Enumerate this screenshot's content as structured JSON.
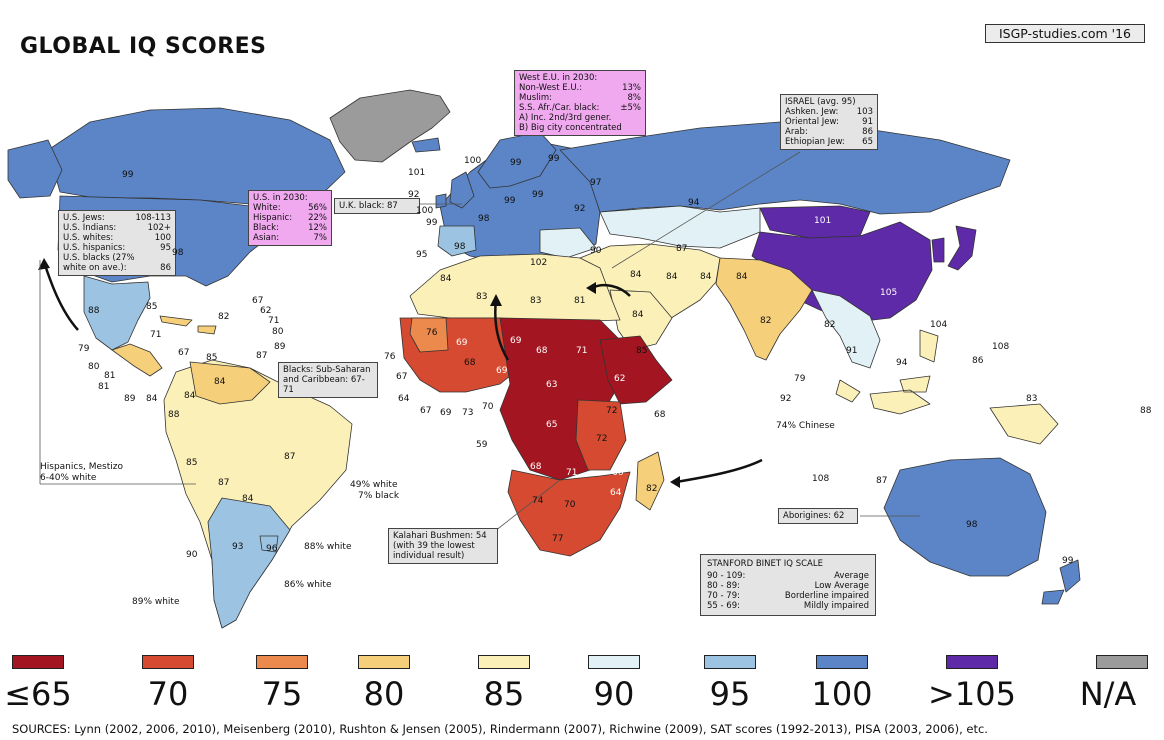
{
  "title": "GLOBAL IQ SCORES",
  "credit": "ISGP-studies.com '16",
  "colors": {
    "le65": "#a31621",
    "70": "#d54a30",
    "75": "#ec8a4e",
    "80": "#f6cf7a",
    "85": "#fbf1b8",
    "90": "#e2f1f6",
    "95": "#9cc4e2",
    "100": "#5b85c6",
    "gt105": "#5e2aa8",
    "na": "#9b9b9b",
    "ocean": "#ffffff",
    "border": "#333333"
  },
  "legend": [
    {
      "label": "≤65",
      "color": "#a31621"
    },
    {
      "label": "70",
      "color": "#d54a30"
    },
    {
      "label": "75",
      "color": "#ec8a4e"
    },
    {
      "label": "80",
      "color": "#f6cf7a"
    },
    {
      "label": "85",
      "color": "#fbf1b8"
    },
    {
      "label": "90",
      "color": "#e2f1f6"
    },
    {
      "label": "95",
      "color": "#9cc4e2"
    },
    {
      "label": "100",
      "color": "#5b85c6"
    },
    {
      "label": ">105",
      "color": "#5e2aa8"
    },
    {
      "label": "N/A",
      "color": "#9b9b9b"
    }
  ],
  "sources": "SOURCES: Lynn (2002, 2006, 2010), Meisenberg (2010), Rushton & Jensen (2005), Rindermann (2007), Richwine (2009), SAT scores (1992-2013), PISA (2003, 2006), etc.",
  "boxes": {
    "us_groups": {
      "rows": [
        [
          "U.S. Jews:",
          "108-113"
        ],
        [
          "U.S. Indians:",
          "102+"
        ],
        [
          "U.S. whites:",
          "100"
        ],
        [
          "U.S. hispanics:",
          "95"
        ],
        [
          "U.S. blacks (27%",
          ""
        ],
        [
          "white on ave.):",
          "86"
        ]
      ]
    },
    "us_2030": {
      "head": "U.S. in 2030:",
      "rows": [
        [
          "White:",
          "56%"
        ],
        [
          "Hispanic:",
          "22%"
        ],
        [
          "Black:",
          "12%"
        ],
        [
          "Asian:",
          "7%"
        ]
      ]
    },
    "uk_black": "U.K. black: 87",
    "west_eu": {
      "rows": [
        [
          "West E.U. in 2030:",
          ""
        ],
        [
          "Non-West E.U.:",
          "13%"
        ],
        [
          "Muslim:",
          "8%"
        ],
        [
          "S.S. Afr./Car. black:",
          "±5%"
        ],
        [
          "A) Inc. 2nd/3rd gener.",
          ""
        ],
        [
          "B) Big city concentrated",
          ""
        ]
      ]
    },
    "israel": {
      "rows": [
        [
          "ISRAEL (avg. 95)",
          ""
        ],
        [
          "Ashken. Jew:",
          "103"
        ],
        [
          "Oriental Jew:",
          "91"
        ],
        [
          "Arab:",
          "86"
        ],
        [
          "Ethiopian Jew:",
          "65"
        ]
      ]
    },
    "blacks": {
      "lines": [
        "Blacks: Sub-Saharan",
        "and Caribbean: 67-71"
      ]
    },
    "kalahari": {
      "lines": [
        "Kalahari Bushmen: 54",
        "(with 39 the lowest",
        "individual result)"
      ]
    },
    "aborigines": "Aborigines: 62",
    "stanford": {
      "head": "STANFORD BINET IQ SCALE",
      "rows": [
        [
          "90 - 109:",
          "Average"
        ],
        [
          "80 -  89:",
          "Low Average"
        ],
        [
          "70 -  79:",
          "Borderline impaired"
        ],
        [
          "55 -  69:",
          "Mildly impaired"
        ]
      ]
    }
  },
  "notes": {
    "hispanics": [
      "Hispanics, Mestizo",
      "6-40% white"
    ],
    "brazil_white": "49% white",
    "brazil_black": "7% black",
    "uruguay_white": "88% white",
    "argentina_white": "86% white",
    "chile_white": "89% white",
    "chinese": "74% Chinese"
  },
  "map_labels": [
    {
      "t": "99",
      "k": "can"
    },
    {
      "t": "98",
      "k": "usa"
    },
    {
      "t": "88",
      "k": "mex"
    },
    {
      "t": "79",
      "k": "gtm"
    },
    {
      "t": "80",
      "k": "hnd"
    },
    {
      "t": "81",
      "k": "nic"
    },
    {
      "t": "81",
      "k": "cri"
    },
    {
      "t": "89",
      "k": "pan"
    },
    {
      "t": "84",
      "k": "col2"
    },
    {
      "t": "85",
      "k": "cub"
    },
    {
      "t": "71",
      "k": "hti"
    },
    {
      "t": "82",
      "k": "dom"
    },
    {
      "t": "67",
      "k": "jam"
    },
    {
      "t": "67",
      "k": "lca"
    },
    {
      "t": "62",
      "k": "vct"
    },
    {
      "t": "71",
      "k": "grd"
    },
    {
      "t": "80",
      "k": "tto"
    },
    {
      "t": "89",
      "k": "brb"
    },
    {
      "t": "87",
      "k": "ven2"
    },
    {
      "t": "85",
      "k": "pri"
    },
    {
      "t": "84",
      "k": "ven"
    },
    {
      "t": "88",
      "k": "ecu"
    },
    {
      "t": "84",
      "k": "col"
    },
    {
      "t": "85",
      "k": "per"
    },
    {
      "t": "87",
      "k": "bra"
    },
    {
      "t": "87",
      "k": "bol"
    },
    {
      "t": "84",
      "k": "pry"
    },
    {
      "t": "93",
      "k": "arg"
    },
    {
      "t": "96",
      "k": "ury"
    },
    {
      "t": "90",
      "k": "chl"
    },
    {
      "t": "101",
      "k": "isl"
    },
    {
      "t": "100",
      "k": "nor"
    },
    {
      "t": "99",
      "k": "swe"
    },
    {
      "t": "99",
      "k": "fin"
    },
    {
      "t": "97",
      "k": "rus"
    },
    {
      "t": "92",
      "k": "irl"
    },
    {
      "t": "100",
      "k": "gbr"
    },
    {
      "t": "99",
      "k": "fra2"
    },
    {
      "t": "98",
      "k": "fra"
    },
    {
      "t": "95",
      "k": "prt"
    },
    {
      "t": "98",
      "k": "esp"
    },
    {
      "t": "99",
      "k": "deu"
    },
    {
      "t": "99",
      "k": "pol"
    },
    {
      "t": "92",
      "k": "ukr"
    },
    {
      "t": "90",
      "k": "tur"
    },
    {
      "t": "94",
      "k": "kaz"
    },
    {
      "t": "87",
      "k": "uzb"
    },
    {
      "t": "101",
      "k": "mng"
    },
    {
      "t": "105",
      "k": "chn"
    },
    {
      "t": "105",
      "k": "kor"
    },
    {
      "t": "105",
      "k": "jpn"
    },
    {
      "t": "104",
      "k": "twn"
    },
    {
      "t": "108",
      "k": "hkg"
    },
    {
      "t": "84",
      "k": "mar"
    },
    {
      "t": "83",
      "k": "dza"
    },
    {
      "t": "83",
      "k": "lby"
    },
    {
      "t": "81",
      "k": "egy"
    },
    {
      "t": "102",
      "k": "ita"
    },
    {
      "t": "84",
      "k": "irq"
    },
    {
      "t": "84",
      "k": "irn"
    },
    {
      "t": "84",
      "k": "afg"
    },
    {
      "t": "84",
      "k": "pak"
    },
    {
      "t": "82",
      "k": "ind"
    },
    {
      "t": "82",
      "k": "mmr"
    },
    {
      "t": "91",
      "k": "tha"
    },
    {
      "t": "94",
      "k": "vnm"
    },
    {
      "t": "86",
      "k": "phl"
    },
    {
      "t": "79",
      "k": "lka"
    },
    {
      "t": "92",
      "k": "mys"
    },
    {
      "t": "108",
      "k": "sgp"
    },
    {
      "t": "87",
      "k": "idn"
    },
    {
      "t": "83",
      "k": "png"
    },
    {
      "t": "98",
      "k": "aus"
    },
    {
      "t": "99",
      "k": "nzl"
    },
    {
      "t": "84",
      "k": "sau"
    },
    {
      "t": "85",
      "k": "yem"
    },
    {
      "t": "76",
      "k": "mrt"
    },
    {
      "t": "69",
      "k": "mli"
    },
    {
      "t": "69",
      "k": "ner"
    },
    {
      "t": "68",
      "k": "tcd"
    },
    {
      "t": "71",
      "k": "sdn"
    },
    {
      "t": "62",
      "k": "eth"
    },
    {
      "t": "68",
      "k": "som"
    },
    {
      "t": "63",
      "k": "caf"
    },
    {
      "t": "65",
      "k": "cod"
    },
    {
      "t": "72",
      "k": "ken"
    },
    {
      "t": "72",
      "k": "tza"
    },
    {
      "t": "68",
      "k": "ago"
    },
    {
      "t": "71",
      "k": "zmb"
    },
    {
      "t": "66",
      "k": "moz"
    },
    {
      "t": "64",
      "k": "mwi"
    },
    {
      "t": "74",
      "k": "nam"
    },
    {
      "t": "70",
      "k": "bwa"
    },
    {
      "t": "77",
      "k": "zaf"
    },
    {
      "t": "82",
      "k": "mdg"
    },
    {
      "t": "69",
      "k": "nga"
    },
    {
      "t": "73",
      "k": "gha"
    },
    {
      "t": "70",
      "k": "cmr"
    },
    {
      "t": "64",
      "k": "sle"
    },
    {
      "t": "67",
      "k": "lbr"
    },
    {
      "t": "69",
      "k": "civ"
    },
    {
      "t": "59",
      "k": "gnq"
    },
    {
      "t": "76",
      "k": "cpv"
    },
    {
      "t": "67",
      "k": "gmb"
    },
    {
      "t": "68",
      "k": "bfa"
    },
    {
      "t": "88",
      "k": "fji"
    }
  ]
}
